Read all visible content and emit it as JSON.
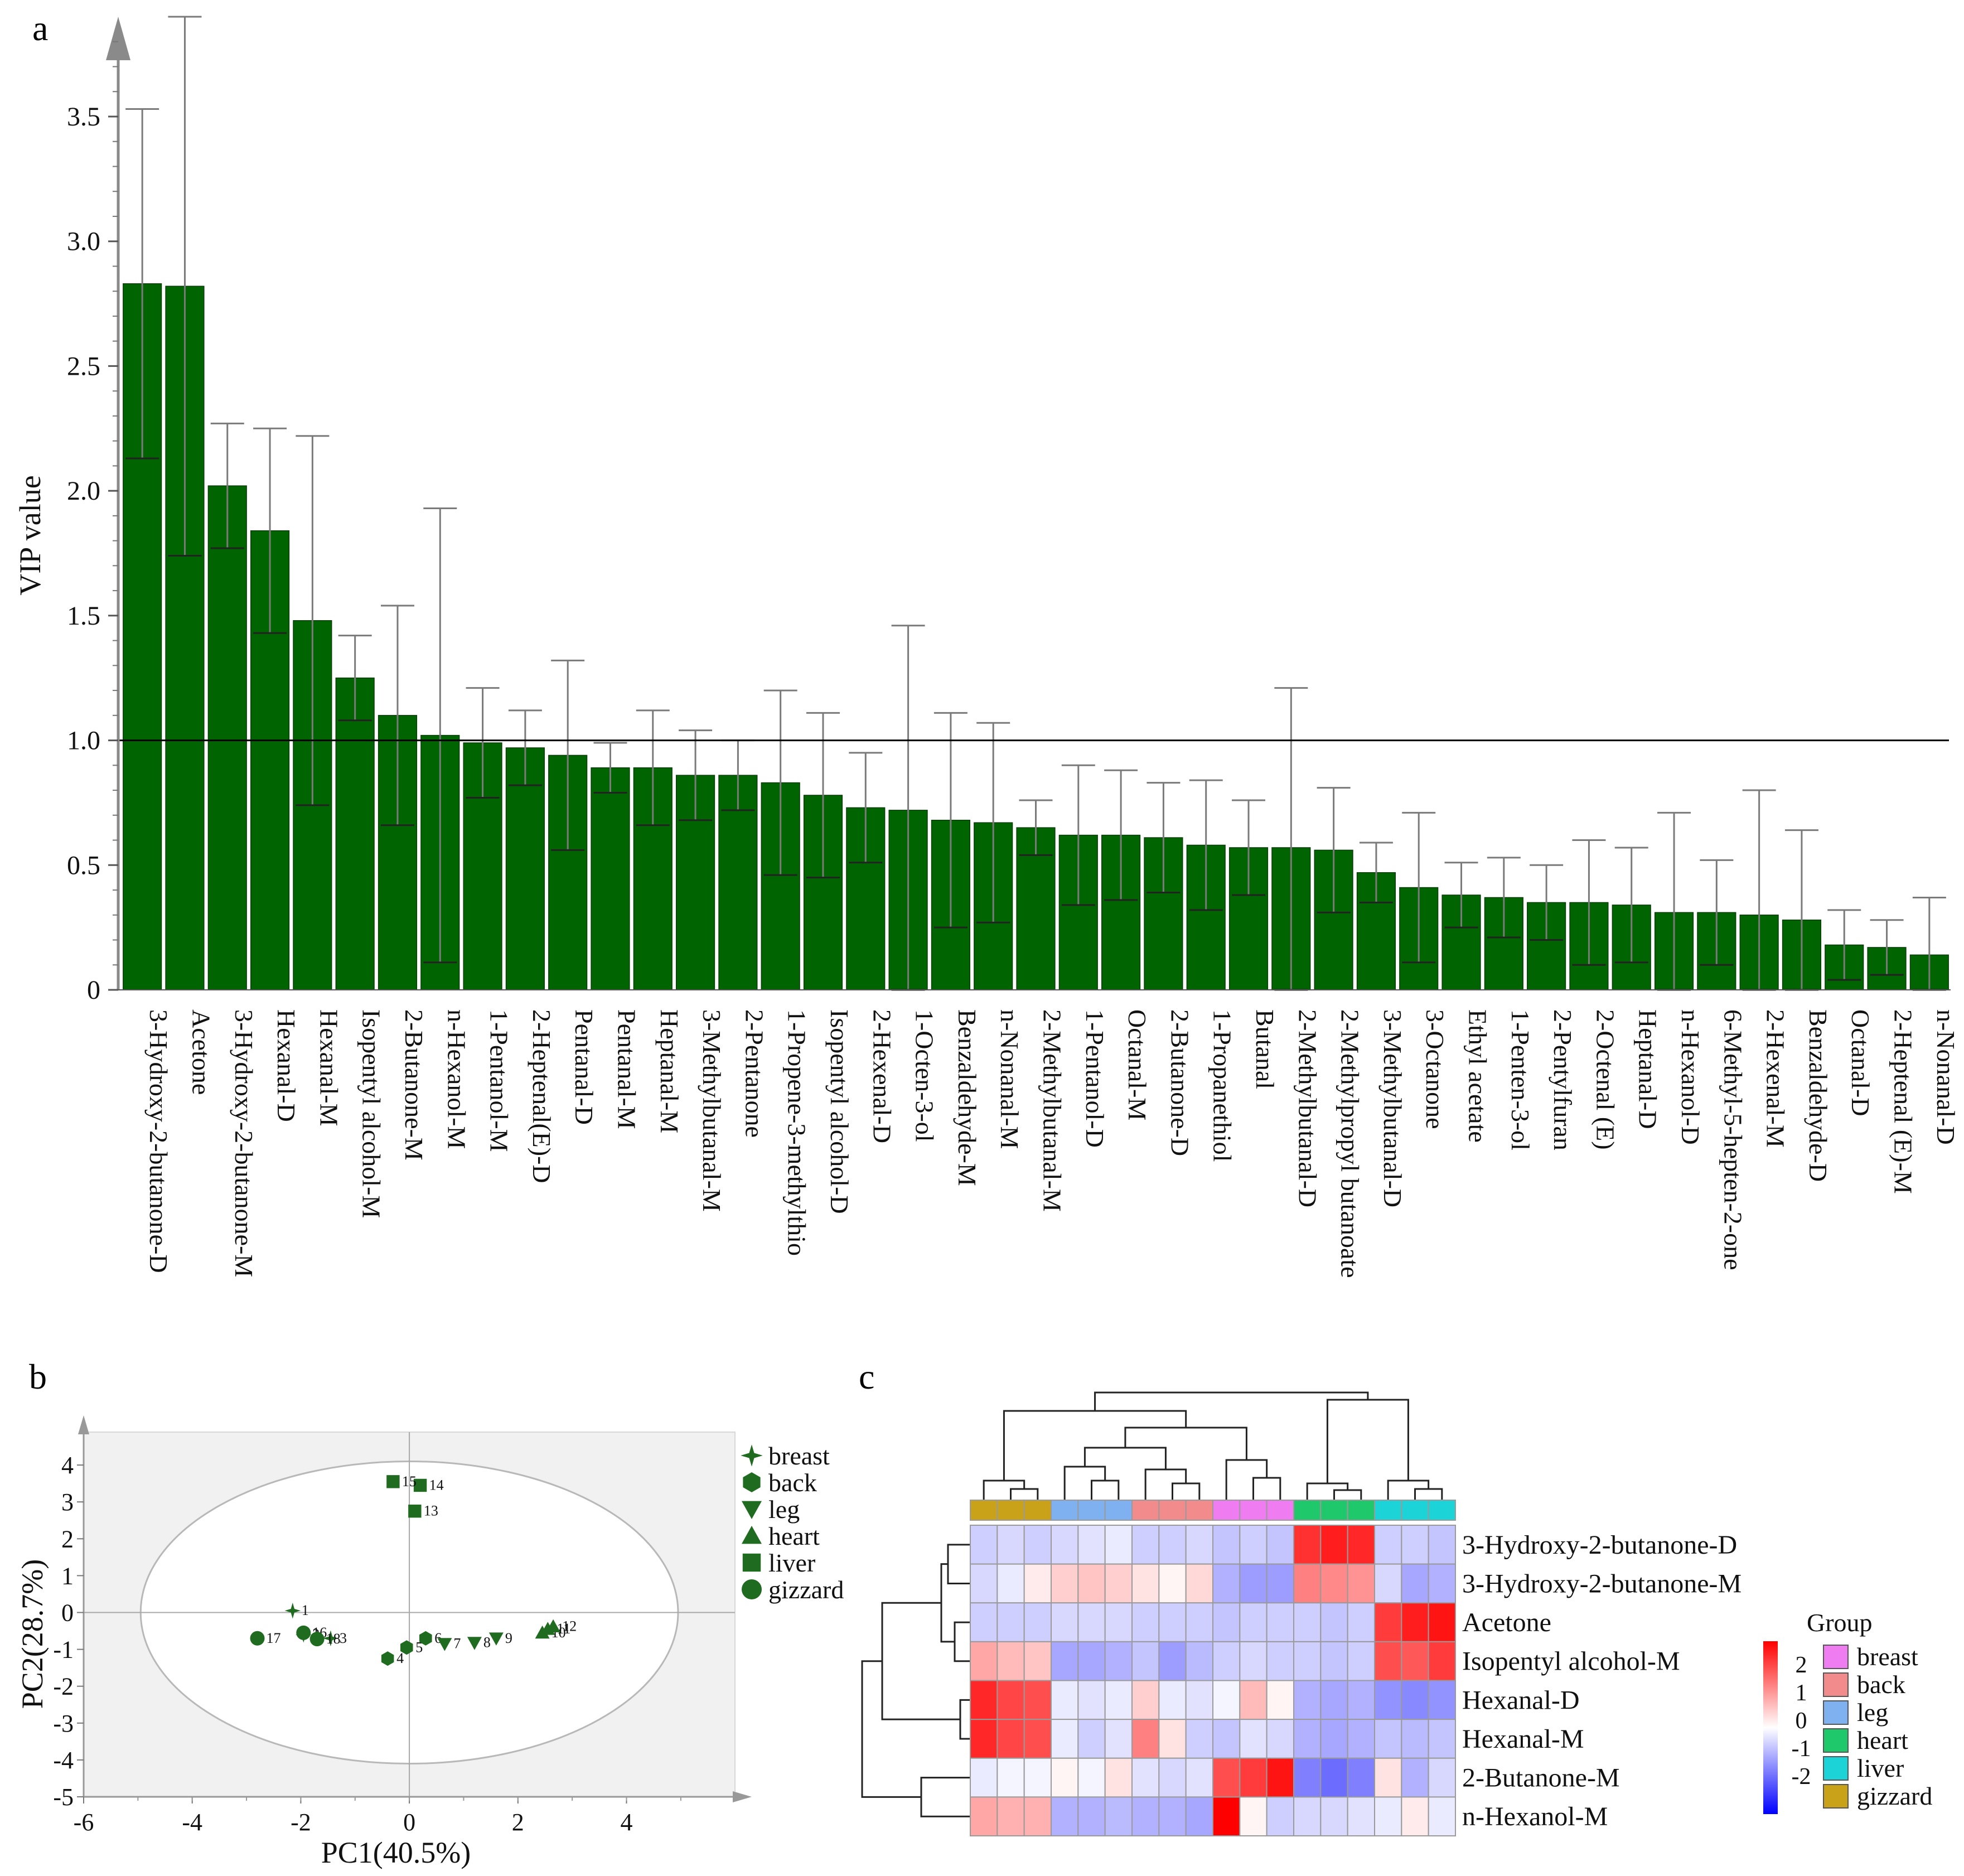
{
  "panels": {
    "a": "a",
    "b": "b",
    "c": "c"
  },
  "colors": {
    "bar": "#006400",
    "bar_edge": "#0b3d0b",
    "errorbar": "#7a7a7a",
    "pca_marker": "#1f6b1f",
    "pca_bg": "#f1f1f1"
  },
  "chart_data": [
    {
      "type": "bar",
      "ylabel": "VIP value",
      "ylim": [
        0,
        3.9
      ],
      "yticks": [
        "0",
        "0.5",
        "1.0",
        "1.5",
        "2.0",
        "2.5",
        "3.0",
        "3.5"
      ],
      "reference_line": 1.0,
      "categories": [
        "3-Hydroxy-2-butanone-D",
        "Acetone",
        "3-Hydroxy-2-butanone-M",
        "Hexanal-D",
        "Hexanal-M",
        "Isopentyl alcohol-M",
        "2-Butanone-M",
        "n-Hexanol-M",
        "1-Pentanol-M",
        "2-Heptenal(E)-D",
        "Pentanal-D",
        "Pentanal-M",
        "Heptanal-M",
        "3-Methylbutanal-M",
        "2-Pentanone",
        "1-Propene-3-methylthio",
        "Isopentyl alcohol-D",
        "2-Hexenal-D",
        "1-Octen-3-ol",
        "Benzaldehyde-M",
        "n-Nonanal-M",
        "2-Methylbutanal-M",
        "1-Pentanol-D",
        "Octanal-M",
        "2-Butanone-D",
        "1-Propanethiol",
        "Butanal",
        "2-Methylbutanal-D",
        "2-Methylpropyl butanoate",
        "3-Methylbutanal-D",
        "3-Octanone",
        "Ethyl acetate",
        "1-Penten-3-ol",
        "2-Pentylfuran",
        "2-Octenal (E)",
        "Heptanal-D",
        "n-Hexanol-D",
        "6-Methyl-5-hepten-2-one",
        "2-Hexenal-M",
        "Benzaldehyde-D",
        "Octanal-D",
        "2-Heptenal (E)-M",
        "n-Nonanal-D"
      ],
      "values": [
        2.83,
        2.82,
        2.02,
        1.84,
        1.48,
        1.25,
        1.1,
        1.02,
        0.99,
        0.97,
        0.94,
        0.89,
        0.89,
        0.86,
        0.86,
        0.83,
        0.78,
        0.73,
        0.72,
        0.68,
        0.67,
        0.65,
        0.62,
        0.62,
        0.61,
        0.58,
        0.57,
        0.57,
        0.56,
        0.47,
        0.41,
        0.38,
        0.37,
        0.35,
        0.35,
        0.34,
        0.31,
        0.31,
        0.3,
        0.28,
        0.18,
        0.17,
        0.14
      ],
      "errors": [
        0.7,
        1.08,
        0.25,
        0.41,
        0.74,
        0.17,
        0.44,
        0.91,
        0.22,
        0.15,
        0.38,
        0.1,
        0.23,
        0.18,
        0.14,
        0.37,
        0.33,
        0.22,
        0.74,
        0.43,
        0.4,
        0.11,
        0.28,
        0.26,
        0.22,
        0.26,
        0.19,
        0.64,
        0.25,
        0.12,
        0.3,
        0.13,
        0.16,
        0.15,
        0.25,
        0.23,
        0.4,
        0.21,
        0.5,
        0.36,
        0.14,
        0.11,
        0.23
      ]
    },
    {
      "type": "scatter",
      "xlabel": "PC1(40.5%)",
      "ylabel": "PC2(28.7%)",
      "xlim": [
        -6,
        5.8
      ],
      "ylim": [
        -5,
        4.9
      ],
      "xticks": [
        "-6",
        "-4",
        "-2",
        "0",
        "2",
        "4"
      ],
      "yticks": [
        "4",
        "3",
        "2",
        "1",
        "0",
        "-1",
        "-2",
        "-3",
        "-4",
        "-5"
      ],
      "ellipse": {
        "cx": 0,
        "cy": 0,
        "rx": 4.95,
        "ry": 4.1
      },
      "groups": [
        {
          "name": "breast",
          "marker": "star"
        },
        {
          "name": "back",
          "marker": "hexagon"
        },
        {
          "name": "leg",
          "marker": "triangle-down"
        },
        {
          "name": "heart",
          "marker": "triangle-up"
        },
        {
          "name": "liver",
          "marker": "square"
        },
        {
          "name": "gizzard",
          "marker": "circle"
        }
      ],
      "points": [
        {
          "label": "1",
          "group": "breast",
          "x": -2.15,
          "y": 0.05
        },
        {
          "label": "2",
          "group": "breast",
          "x": -1.95,
          "y": -0.6
        },
        {
          "label": "3",
          "group": "breast",
          "x": -1.45,
          "y": -0.7
        },
        {
          "label": "4",
          "group": "back",
          "x": -0.4,
          "y": -1.25
        },
        {
          "label": "5",
          "group": "back",
          "x": -0.05,
          "y": -0.95
        },
        {
          "label": "6",
          "group": "back",
          "x": 0.3,
          "y": -0.7
        },
        {
          "label": "7",
          "group": "leg",
          "x": 0.65,
          "y": -0.85
        },
        {
          "label": "8",
          "group": "leg",
          "x": 1.2,
          "y": -0.82
        },
        {
          "label": "9",
          "group": "leg",
          "x": 1.6,
          "y": -0.7
        },
        {
          "label": "10",
          "group": "heart",
          "x": 2.45,
          "y": -0.55
        },
        {
          "label": "11",
          "group": "heart",
          "x": 2.55,
          "y": -0.45
        },
        {
          "label": "12",
          "group": "heart",
          "x": 2.65,
          "y": -0.38
        },
        {
          "label": "13",
          "group": "liver",
          "x": 0.1,
          "y": 2.75
        },
        {
          "label": "14",
          "group": "liver",
          "x": 0.2,
          "y": 3.45
        },
        {
          "label": "15",
          "group": "liver",
          "x": -0.3,
          "y": 3.55
        },
        {
          "label": "16",
          "group": "gizzard",
          "x": -1.95,
          "y": -0.55
        },
        {
          "label": "17",
          "group": "gizzard",
          "x": -2.8,
          "y": -0.7
        },
        {
          "label": "18",
          "group": "gizzard",
          "x": -1.7,
          "y": -0.72
        }
      ]
    },
    {
      "type": "heatmap",
      "rows": [
        "3-Hydroxy-2-butanone-D",
        "3-Hydroxy-2-butanone-M",
        "Acetone",
        "Isopentyl alcohol-M",
        "Hexanal-D",
        "Hexanal-M",
        "2-Butanone-M",
        "n-Hexanol-M"
      ],
      "column_groups": [
        "gizzard",
        "gizzard",
        "gizzard",
        "leg",
        "leg",
        "leg",
        "back",
        "back",
        "back",
        "breast",
        "breast",
        "breast",
        "heart",
        "heart",
        "heart",
        "liver",
        "liver",
        "liver"
      ],
      "values": [
        [
          -0.5,
          -0.4,
          -0.5,
          -0.4,
          -0.3,
          -0.2,
          -0.5,
          -0.5,
          -0.4,
          -0.6,
          -0.5,
          -0.6,
          2.1,
          2.3,
          2.2,
          -0.5,
          -0.5,
          -0.6
        ],
        [
          -0.4,
          -0.2,
          0.2,
          0.5,
          0.6,
          0.5,
          0.3,
          0.1,
          0.4,
          -0.8,
          -1.0,
          -1.0,
          1.3,
          1.2,
          1.1,
          -0.4,
          -0.9,
          -0.8
        ],
        [
          -0.5,
          -0.5,
          -0.5,
          -0.4,
          -0.4,
          -0.4,
          -0.5,
          -0.5,
          -0.5,
          -0.6,
          -0.5,
          -0.5,
          -0.5,
          -0.6,
          -0.5,
          2.0,
          2.3,
          2.4
        ],
        [
          0.9,
          0.7,
          0.6,
          -0.9,
          -0.9,
          -0.8,
          -0.6,
          -1.0,
          -0.7,
          -0.5,
          -0.4,
          -0.5,
          -0.5,
          -0.6,
          -0.5,
          1.8,
          1.7,
          2.0
        ],
        [
          2.2,
          1.9,
          1.8,
          -0.2,
          -0.3,
          -0.2,
          0.5,
          -0.2,
          -0.3,
          -0.1,
          0.7,
          0.1,
          -0.8,
          -0.9,
          -0.8,
          -1.1,
          -1.2,
          -1.1
        ],
        [
          2.2,
          1.9,
          1.8,
          -0.2,
          -0.5,
          -0.3,
          1.3,
          0.3,
          -0.5,
          -0.6,
          -0.3,
          -0.4,
          -0.8,
          -0.9,
          -0.8,
          -0.6,
          -0.7,
          -0.6
        ],
        [
          -0.2,
          -0.1,
          -0.1,
          0.1,
          -0.1,
          0.3,
          -0.3,
          -0.4,
          -0.3,
          1.8,
          2.0,
          2.4,
          -1.3,
          -1.5,
          -1.3,
          0.3,
          -0.8,
          -0.4
        ],
        [
          0.9,
          0.8,
          0.8,
          -0.8,
          -0.8,
          -0.7,
          -0.8,
          -0.8,
          -0.9,
          2.6,
          0.1,
          -0.5,
          -0.4,
          -0.4,
          -0.3,
          -0.2,
          0.2,
          -0.2
        ]
      ],
      "legend_title": "Group",
      "legend_groups": [
        {
          "name": "breast",
          "color": "#f07cf2"
        },
        {
          "name": "back",
          "color": "#f28c8c"
        },
        {
          "name": "leg",
          "color": "#7fb1f0"
        },
        {
          "name": "heart",
          "color": "#1fc86b"
        },
        {
          "name": "liver",
          "color": "#1cd3d8"
        },
        {
          "name": "gizzard",
          "color": "#c9a21a"
        }
      ],
      "scale_labels": [
        "2",
        "1",
        "0",
        "-1",
        "-2"
      ],
      "scale_range": [
        -2.6,
        2.6
      ]
    }
  ]
}
